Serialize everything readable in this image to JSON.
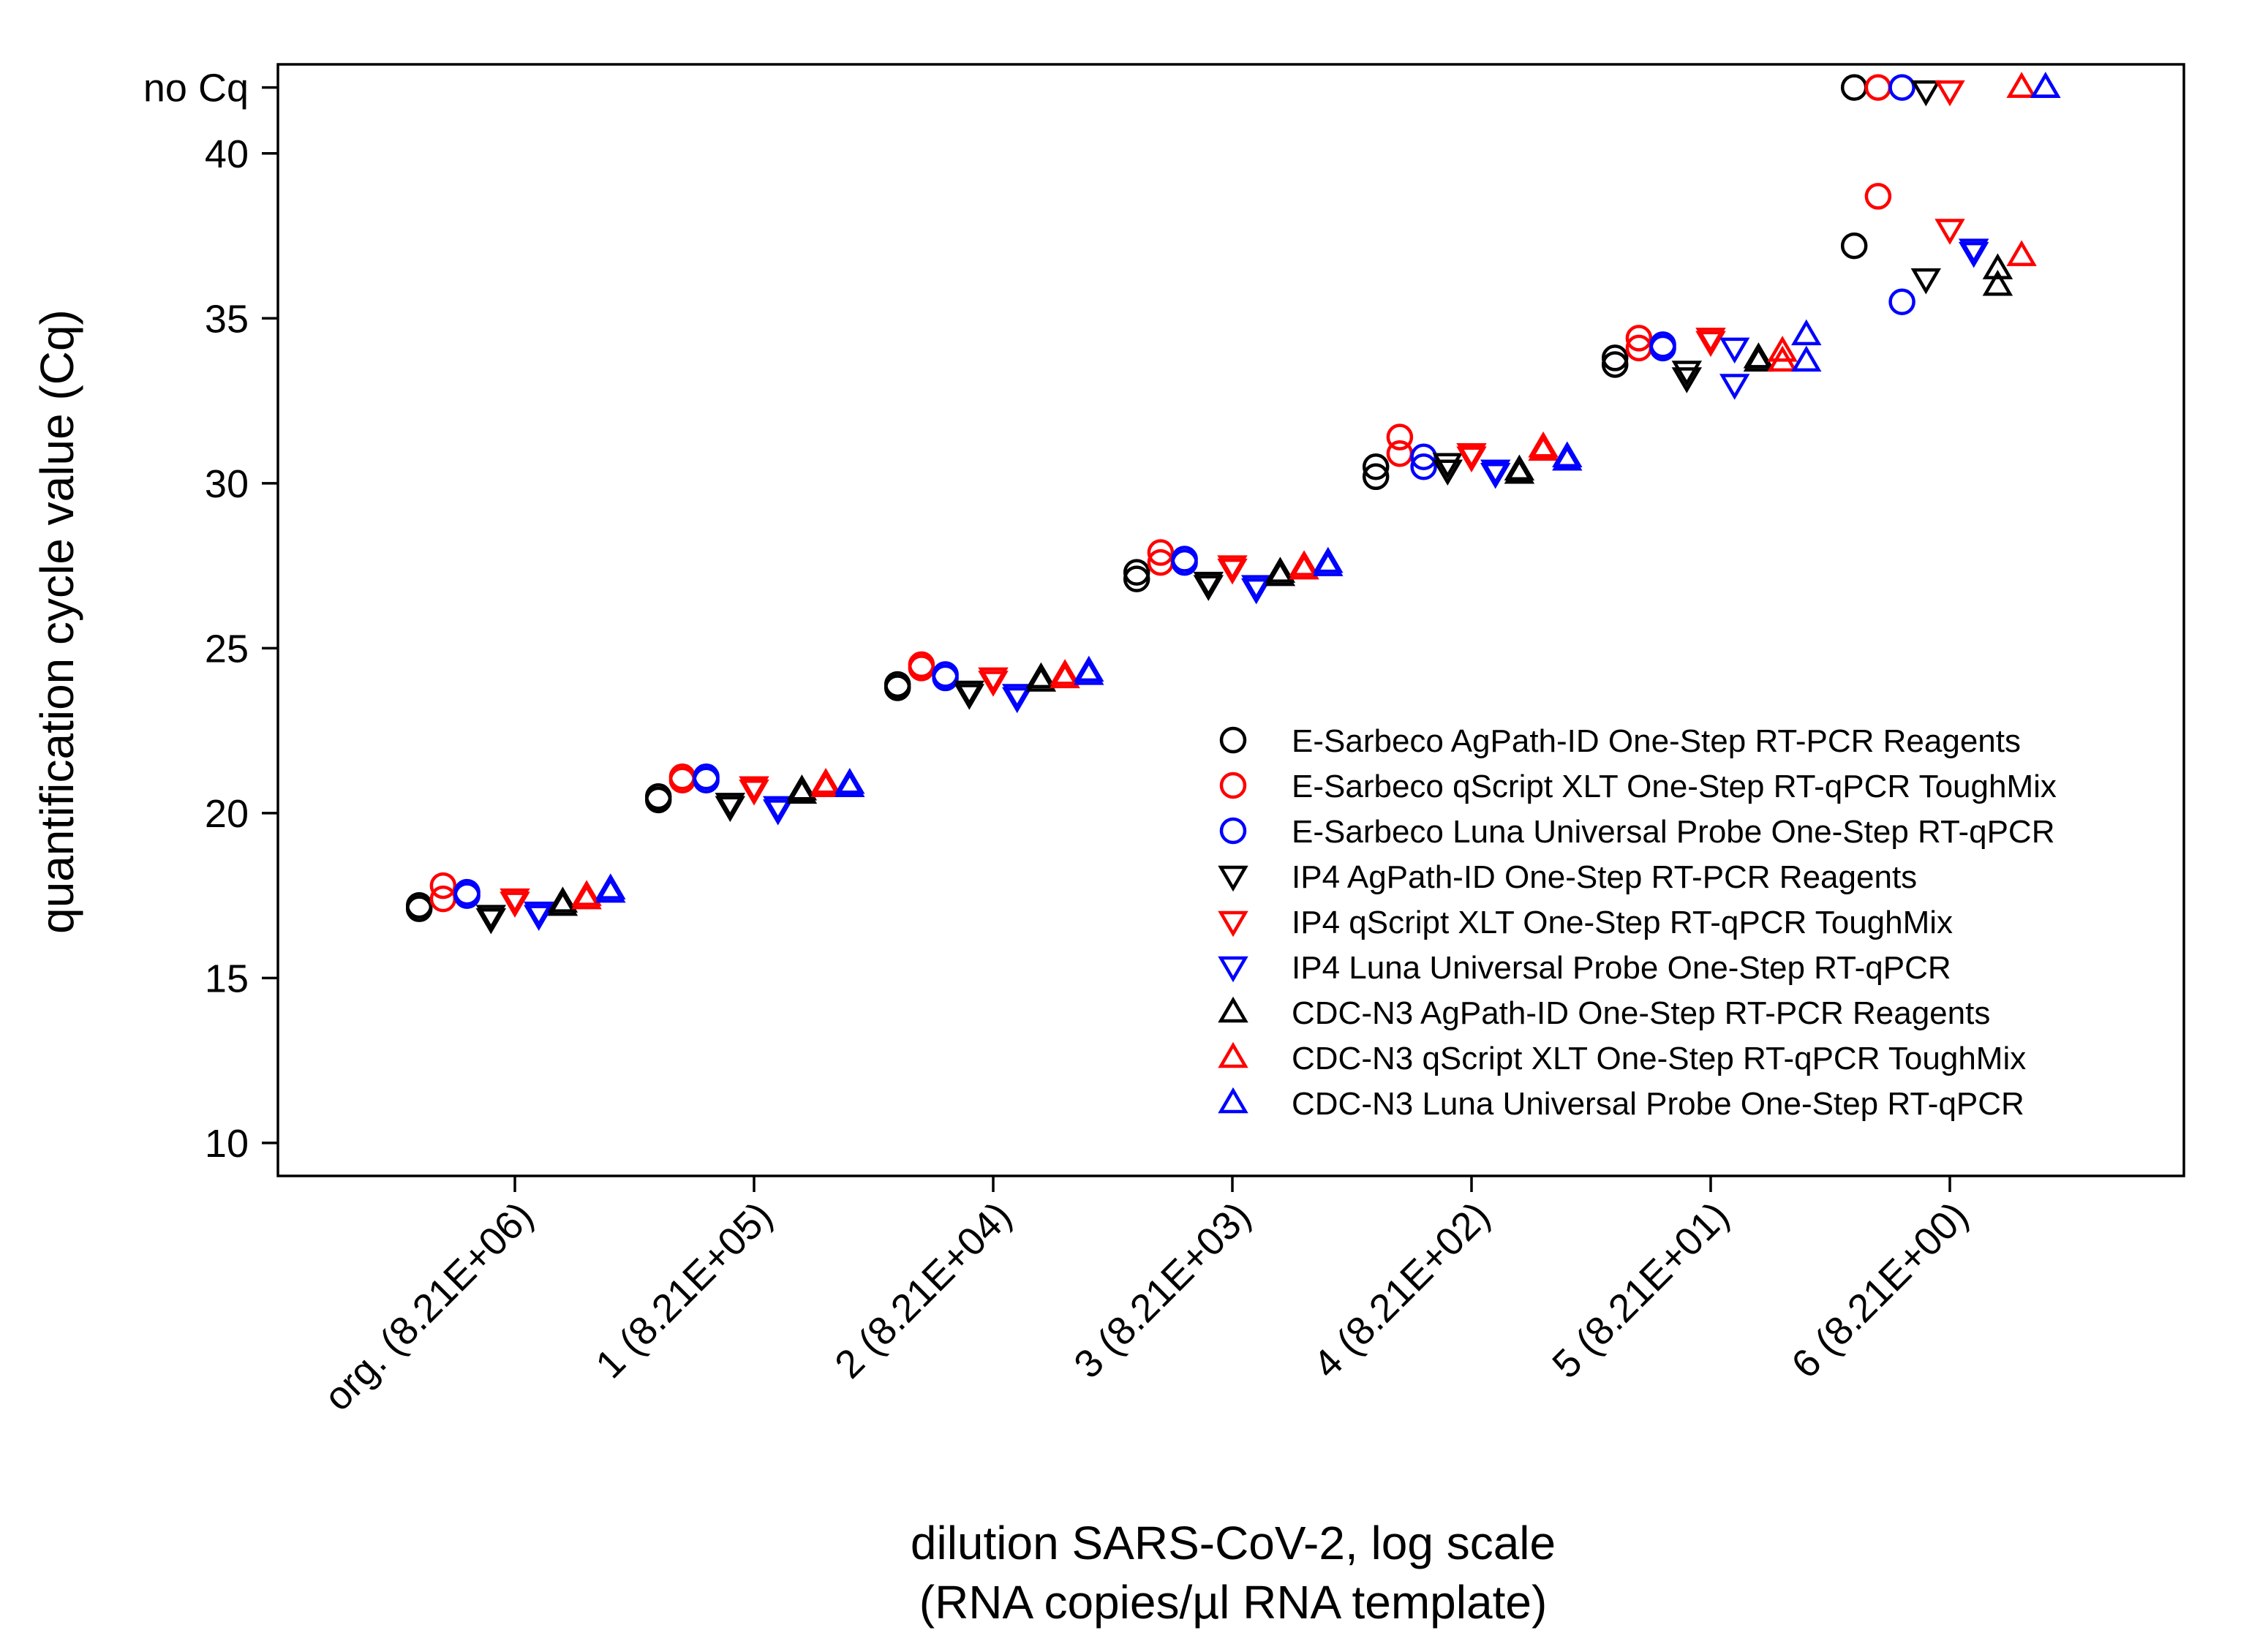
{
  "chart_data": {
    "type": "scatter",
    "xlabel_lines": [
      "dilution SARS-CoV-2, log scale",
      "(RNA copies/µl RNA template)"
    ],
    "ylabel": "quantification cycle value (Cq)",
    "ylim": [
      9,
      42.7
    ],
    "yticks": [
      10,
      15,
      20,
      25,
      30,
      35,
      40
    ],
    "no_cq_label": "no Cq",
    "no_cq_value": 42,
    "categories": [
      "org. (8.21E+06)",
      "1 (8.21E+05)",
      "2 (8.21E+04)",
      "3 (8.21E+03)",
      "4 (8.21E+02)",
      "5 (8.21E+01)",
      "6 (8.21E+00)"
    ],
    "series": [
      {
        "name": "E-Sarbeco AgPath-ID One-Step RT-PCR Reagents",
        "marker": "circle",
        "color": "#000000",
        "offset": -0.4,
        "values": [
          [
            17.1,
            17.2
          ],
          [
            20.4,
            20.5
          ],
          [
            23.8,
            23.9
          ],
          [
            27.1,
            27.3
          ],
          [
            30.2,
            30.5
          ],
          [
            33.6,
            33.8
          ],
          [
            37.2,
            42
          ]
        ]
      },
      {
        "name": "E-Sarbeco qScript XLT One-Step RT-qPCR ToughMix",
        "marker": "circle",
        "color": "#ff0000",
        "offset": -0.3,
        "values": [
          [
            17.4,
            17.8
          ],
          [
            21.0,
            21.1
          ],
          [
            24.4,
            24.5
          ],
          [
            27.6,
            27.9
          ],
          [
            30.9,
            31.4
          ],
          [
            34.1,
            34.4
          ],
          [
            38.7,
            42
          ]
        ]
      },
      {
        "name": "E-Sarbeco Luna Universal Probe One-Step RT-qPCR",
        "marker": "circle",
        "color": "#0000ff",
        "offset": -0.2,
        "values": [
          [
            17.5,
            17.6
          ],
          [
            21.0,
            21.1
          ],
          [
            24.1,
            24.2
          ],
          [
            27.6,
            27.7
          ],
          [
            30.5,
            30.8
          ],
          [
            34.1,
            34.2
          ],
          [
            35.5,
            42
          ]
        ]
      },
      {
        "name": "IP4 AgPath-ID One-Step RT-PCR Reagents",
        "marker": "triangle-down",
        "color": "#000000",
        "offset": -0.1,
        "values": [
          [
            16.8,
            16.9
          ],
          [
            20.2,
            20.3
          ],
          [
            23.6,
            23.7
          ],
          [
            26.9,
            27.0
          ],
          [
            30.4,
            30.6
          ],
          [
            33.2,
            33.4
          ],
          [
            36.2,
            41.9
          ]
        ]
      },
      {
        "name": "IP4 qScript XLT One-Step RT-qPCR ToughMix",
        "marker": "triangle-down",
        "color": "#ff0000",
        "offset": 0.0,
        "values": [
          [
            17.3,
            17.4
          ],
          [
            20.7,
            20.8
          ],
          [
            24.0,
            24.1
          ],
          [
            27.4,
            27.5
          ],
          [
            30.8,
            30.9
          ],
          [
            34.3,
            34.4
          ],
          [
            37.7,
            41.9
          ]
        ]
      },
      {
        "name": "IP4 Luna Universal Probe One-Step RT-qPCR",
        "marker": "triangle-down",
        "color": "#0000ff",
        "offset": 0.1,
        "values": [
          [
            16.9,
            17.0
          ],
          [
            20.1,
            20.2
          ],
          [
            23.5,
            23.6
          ],
          [
            26.8,
            26.9
          ],
          [
            30.3,
            30.4
          ],
          [
            33.0,
            34.1
          ],
          [
            37.0,
            37.1
          ]
        ]
      },
      {
        "name": "CDC-N3 AgPath-ID One-Step RT-PCR Reagents",
        "marker": "triangle-up",
        "color": "#000000",
        "offset": 0.2,
        "values": [
          [
            17.2,
            17.3
          ],
          [
            20.6,
            20.7
          ],
          [
            24.0,
            24.1
          ],
          [
            27.2,
            27.3
          ],
          [
            30.3,
            30.4
          ],
          [
            33.7,
            33.8
          ],
          [
            36.0,
            36.5
          ]
        ]
      },
      {
        "name": "CDC-N3 qScript XLT One-Step RT-qPCR ToughMix",
        "marker": "triangle-up",
        "color": "#ff0000",
        "offset": 0.3,
        "values": [
          [
            17.4,
            17.5
          ],
          [
            20.8,
            20.9
          ],
          [
            24.1,
            24.2
          ],
          [
            27.4,
            27.5
          ],
          [
            31.0,
            31.1
          ],
          [
            33.7,
            34.0
          ],
          [
            36.9,
            42
          ]
        ]
      },
      {
        "name": "CDC-N3 Luna Universal Probe One-Step RT-qPCR",
        "marker": "triangle-up",
        "color": "#0000ff",
        "offset": 0.4,
        "values": [
          [
            17.6,
            17.7
          ],
          [
            20.8,
            20.9
          ],
          [
            24.2,
            24.3
          ],
          [
            27.5,
            27.6
          ],
          [
            30.7,
            30.8
          ],
          [
            33.7,
            34.5
          ],
          [
            42,
            42
          ]
        ]
      }
    ],
    "legend_position": "bottom-right, inside plot",
    "grid": false
  }
}
